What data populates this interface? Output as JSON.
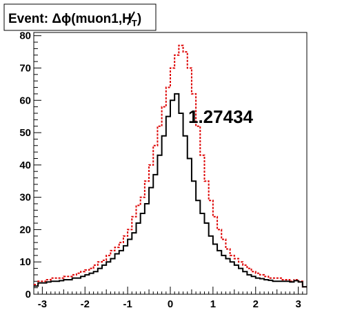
{
  "chart_data": {
    "type": "line",
    "title": "Event: Δϕ(muon1,H̸T)",
    "title_parts": {
      "prefix": "Event: Δϕ(muon1,",
      "h": "H",
      "sub": "T",
      "suffix": ")"
    },
    "annotation": "1.27434",
    "xlim": [
      -3.2,
      3.2
    ],
    "ylim": [
      0,
      81
    ],
    "x_ticks": [
      -3,
      -2,
      -1,
      0,
      1,
      2,
      3
    ],
    "y_ticks": [
      0,
      10,
      20,
      30,
      40,
      50,
      60,
      70,
      80
    ],
    "bin_edges": [
      -3.2,
      -3.1,
      -3.0,
      -2.9,
      -2.8,
      -2.7,
      -2.6,
      -2.5,
      -2.4,
      -2.3,
      -2.2,
      -2.1,
      -2.0,
      -1.9,
      -1.8,
      -1.7,
      -1.6,
      -1.5,
      -1.4,
      -1.3,
      -1.2,
      -1.1,
      -1.0,
      -0.9,
      -0.8,
      -0.7,
      -0.6,
      -0.5,
      -0.4,
      -0.3,
      -0.2,
      -0.1,
      0.0,
      0.1,
      0.2,
      0.3,
      0.4,
      0.5,
      0.6,
      0.7,
      0.8,
      0.9,
      1.0,
      1.1,
      1.2,
      1.3,
      1.4,
      1.5,
      1.6,
      1.7,
      1.8,
      1.9,
      2.0,
      2.1,
      2.2,
      2.3,
      2.4,
      2.5,
      2.6,
      2.7,
      2.8,
      2.9,
      3.0,
      3.1,
      3.2
    ],
    "series": [
      {
        "color": "#000000",
        "style": "solid",
        "values": [
          2.5,
          3.5,
          3.5,
          3.8,
          4,
          4,
          4.2,
          4.5,
          4.5,
          5,
          5,
          5.5,
          6,
          6.5,
          7,
          8,
          9,
          10,
          11,
          12.5,
          13.5,
          15,
          17,
          19,
          22,
          25,
          28,
          33,
          37,
          43,
          49,
          55,
          60,
          62,
          56,
          49,
          42,
          35,
          29,
          25,
          22,
          18,
          15.5,
          13.5,
          12,
          11,
          10,
          9,
          8,
          7,
          6,
          5.5,
          5,
          4.8,
          4.5,
          4.3,
          4,
          4,
          4,
          4,
          3.8,
          4.2,
          3.8,
          2.3
        ]
      },
      {
        "color": "#dd0000",
        "style": "dashed",
        "values": [
          3,
          4,
          4,
          4.5,
          5,
          5,
          5,
          5.5,
          5.5,
          6,
          6.5,
          7,
          7.5,
          8,
          9,
          10,
          10.5,
          12,
          13.5,
          14.5,
          16,
          18,
          20,
          24,
          27.5,
          30,
          35,
          40,
          46,
          52,
          58,
          64,
          70,
          74,
          77,
          75,
          70,
          62,
          52,
          43,
          35,
          29,
          24,
          20,
          17,
          14,
          12,
          11,
          10,
          9,
          8,
          7,
          6.5,
          6,
          5.5,
          5,
          5,
          5,
          4.5,
          4.5,
          4,
          4.5,
          4,
          2.3
        ]
      }
    ]
  }
}
